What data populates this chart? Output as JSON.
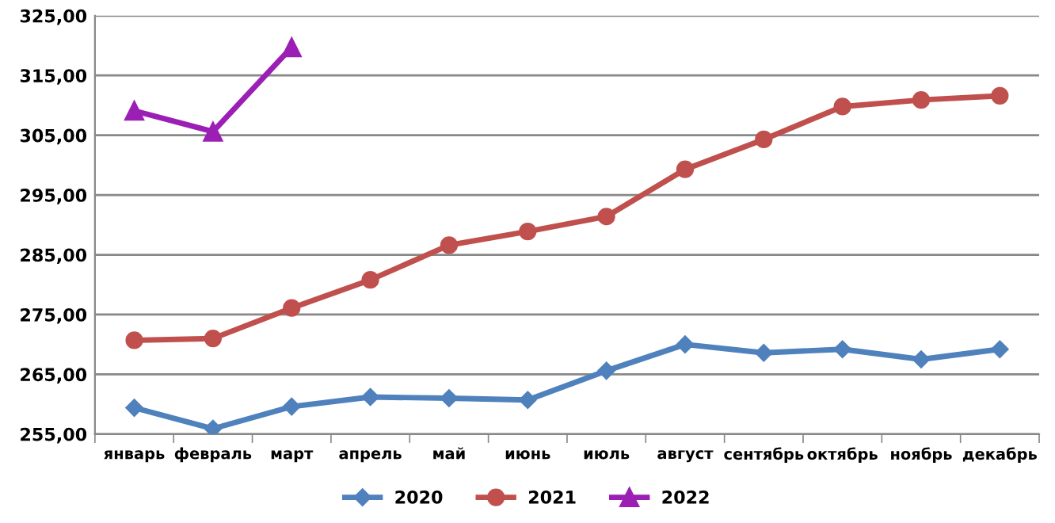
{
  "chart_data": {
    "type": "line",
    "categories": [
      "январь",
      "февраль",
      "март",
      "апрель",
      "май",
      "июнь",
      "июль",
      "август",
      "сентябрь",
      "октябрь",
      "ноябрь",
      "декабрь"
    ],
    "series": [
      {
        "name": "2020",
        "color": "#4f81bd",
        "marker": "diamond",
        "values": [
          259.4,
          255.9,
          259.6,
          261.2,
          261.0,
          260.7,
          265.6,
          270.0,
          268.6,
          269.2,
          267.5,
          269.2
        ]
      },
      {
        "name": "2021",
        "color": "#c0504d",
        "marker": "circle",
        "values": [
          270.7,
          271.0,
          276.1,
          280.8,
          286.6,
          288.9,
          291.4,
          299.3,
          304.3,
          309.8,
          310.9,
          311.6
        ]
      },
      {
        "name": "2022",
        "color": "#9c1fb5",
        "marker": "triangle",
        "values": [
          309.1,
          305.6,
          319.7,
          null,
          null,
          null,
          null,
          null,
          null,
          null,
          null,
          null
        ]
      }
    ],
    "ylim": [
      255,
      325
    ],
    "yticks": [
      {
        "value": 255,
        "label": "255,00"
      },
      {
        "value": 265,
        "label": "265,00"
      },
      {
        "value": 275,
        "label": "275,00"
      },
      {
        "value": 285,
        "label": "285,00"
      },
      {
        "value": 295,
        "label": "295,00"
      },
      {
        "value": 305,
        "label": "305,00"
      },
      {
        "value": 315,
        "label": "315,00"
      },
      {
        "value": 325,
        "label": "325,00"
      }
    ],
    "grid": "y",
    "legend": "bottom"
  }
}
